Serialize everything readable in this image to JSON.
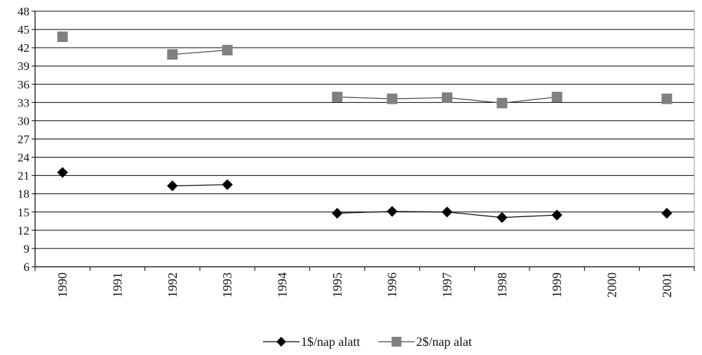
{
  "chart_data": {
    "type": "line",
    "title": "",
    "xlabel": "",
    "ylabel": "",
    "categories": [
      "1990",
      "1991",
      "1992",
      "1993",
      "1994",
      "1995",
      "1996",
      "1997",
      "1998",
      "1999",
      "2000",
      "2001"
    ],
    "yticks": [
      6,
      9,
      12,
      15,
      18,
      21,
      24,
      27,
      30,
      33,
      36,
      39,
      42,
      45,
      48
    ],
    "ylim": [
      6,
      48
    ],
    "grid": "horizontal",
    "legend": "bottom-center",
    "series": [
      {
        "name": "1$/nap alatt",
        "marker": "diamond",
        "color": "#000000",
        "values": [
          21.5,
          null,
          19.3,
          19.5,
          null,
          14.8,
          15.1,
          15.0,
          14.1,
          14.5,
          null,
          14.8
        ]
      },
      {
        "name": "2$/nap alat",
        "marker": "square",
        "color": "#808080",
        "values": [
          43.8,
          null,
          40.9,
          41.6,
          null,
          33.9,
          33.6,
          33.8,
          32.9,
          33.9,
          null,
          33.6
        ]
      }
    ]
  }
}
